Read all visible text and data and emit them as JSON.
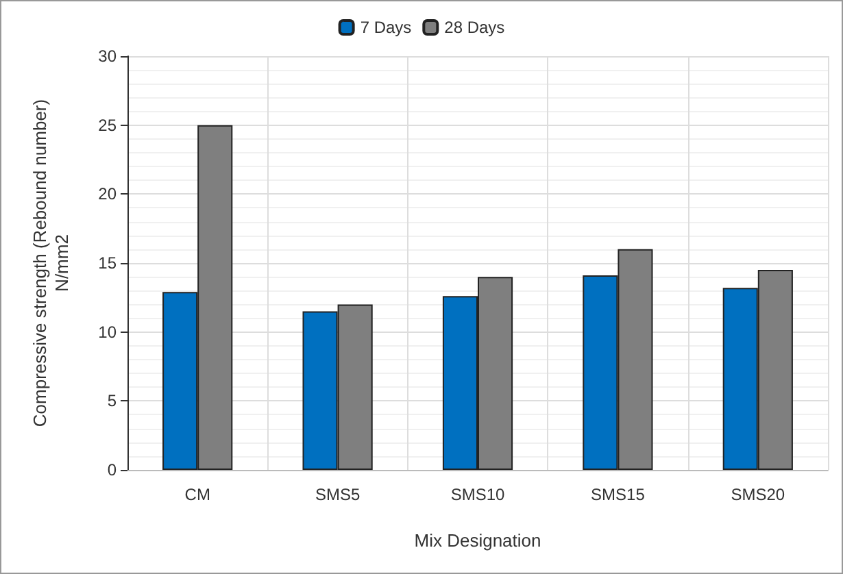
{
  "chart_data": {
    "type": "bar",
    "xlabel": "Mix Designation",
    "ylabel": "Compressive strength (Rebound number)\nN/mm2",
    "categories": [
      "CM",
      "SMS5",
      "SMS10",
      "SMS15",
      "SMS20"
    ],
    "series": [
      {
        "name": "7 Days",
        "color": "#0070c0",
        "values": [
          12.9,
          11.5,
          12.6,
          14.1,
          13.2
        ]
      },
      {
        "name": "28 Days",
        "color": "#7f7f7f",
        "values": [
          25,
          12,
          14,
          16,
          14.5
        ]
      }
    ],
    "ylim": [
      0,
      30
    ],
    "yticks": [
      0,
      5,
      10,
      15,
      20,
      25,
      30
    ],
    "grid": true,
    "legend": "top"
  }
}
